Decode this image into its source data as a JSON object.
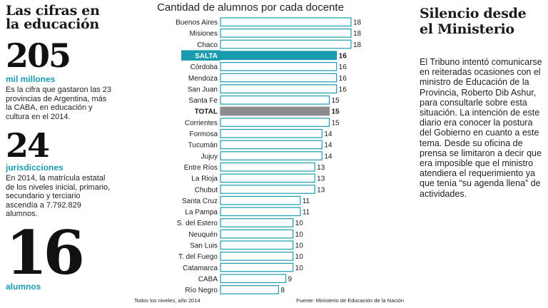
{
  "left": {
    "title": "Las cifras en la educación",
    "stat1": {
      "value": "205",
      "unit": "mil millones",
      "text": "Es la cifra que gastaron las 23 provincias de Argentina, más la CABA, en educación y cultura en el 2014."
    },
    "stat2": {
      "value": "24",
      "unit": "jurisdicciones",
      "text": "En 2014, la matrícula estatal de los niveles inicial, primario, secundario y terciario ascendía a 7.792.829 alumnos."
    },
    "stat3": {
      "value": "16",
      "unit": "alumnos"
    }
  },
  "right": {
    "title": "Silencio desde el Ministerio",
    "body": "El Tribuno intentó comunicarse en reiteradas ocasiones con el ministro de Educación de la Provincia, Roberto Dib Ashur, para consultarle sobre esta situación. La intención de este diario era conocer la postura del Gobierno en cuanto a este tema. Desde su oficina de prensa se limitaron a decir que era imposible que el ministro atendiera el requerimiento ya que tenía “su agenda llena” de actividades."
  },
  "colors": {
    "highlight": "#1a9bb0",
    "total": "#8c8c8c",
    "bar_fill": "#ffffff",
    "bar_stroke": "#1a9bb0"
  },
  "chart_data": {
    "type": "bar",
    "orientation": "horizontal",
    "title": "Cantidad de alumnos por cada docente",
    "footer_left": "Todos los niveles, año 2014",
    "footer_right": "Fuente: Ministerio de Educación de la Nación",
    "categories": [
      "Buenos Aires",
      "Misiones",
      "Chaco",
      "SALTA",
      "Córdoba",
      "Mendoza",
      "San Juan",
      "Santa Fe",
      "TOTAL",
      "Corrientes",
      "Formosa",
      "Tucumán",
      "Jujuy",
      "Entre Ríos",
      "La Rioja",
      "Chubut",
      "Santa Cruz",
      "La Pampa",
      "S. del Estero",
      "Neuquén",
      "San Luis",
      "T. del Fuego",
      "Catamarca",
      "CABA",
      "Río Negro"
    ],
    "values": [
      18,
      18,
      18,
      16,
      16,
      16,
      16,
      15,
      15,
      15,
      14,
      14,
      14,
      13,
      13,
      13,
      11,
      11,
      10,
      10,
      10,
      10,
      10,
      9,
      8
    ],
    "highlight": [
      "SALTA"
    ],
    "total_row": [
      "TOTAL"
    ]
  }
}
